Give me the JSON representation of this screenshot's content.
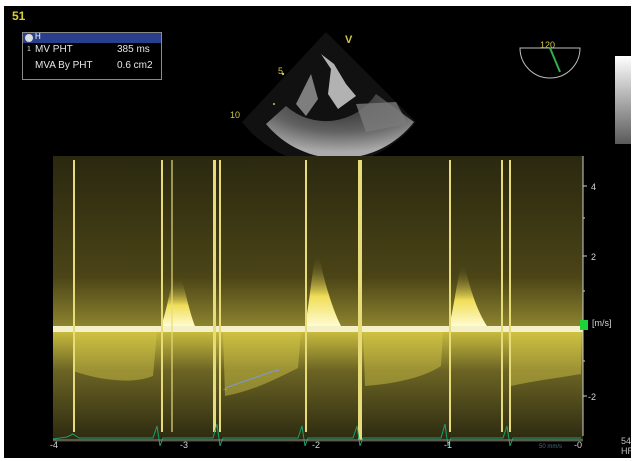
{
  "frame_number": "51",
  "measurements": {
    "header_icon": "settings-circle-icon",
    "header_label": "H",
    "rows": [
      {
        "index": "1",
        "name": "MV PHT",
        "value": "385 ms"
      },
      {
        "index": "",
        "name": "MVA By PHT",
        "value": "0.6 cm2"
      }
    ]
  },
  "image_2d": {
    "marker": "V",
    "depth_labels": [
      "5",
      "10"
    ]
  },
  "probe_angle": "120",
  "velocity_scale": {
    "ticks": [
      "4",
      "2",
      "-2"
    ],
    "unit": "[m/s]"
  },
  "time_axis": {
    "ticks": [
      "-4",
      "-3",
      "-2",
      "-1",
      "-0"
    ]
  },
  "sweep_speed": "50 mm/s",
  "right_info": [
    "54",
    "HR"
  ],
  "colors": {
    "doppler": "#e8d84a",
    "text_yellow": "#d9cf3a",
    "ecg": "#1aa06a",
    "header_blue": "#2a3f8c"
  }
}
